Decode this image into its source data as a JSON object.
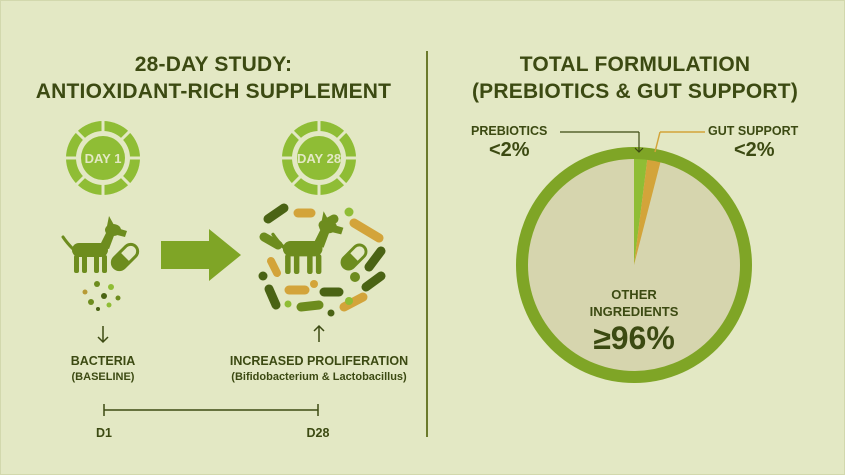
{
  "left_panel": {
    "title_line1": "28-DAY STUDY:",
    "title_line2": "ANTIOXIDANT-RICH SUPPLEMENT",
    "day1_badge": "DAY 1",
    "day28_badge": "DAY 28",
    "baseline_label": "BACTERIA",
    "baseline_sub": "(BASELINE)",
    "increase_label": "INCREASED PROLIFERATION",
    "increase_sub": "(Bifidobacterium & Lactobacillus)",
    "timeline_start": "D1",
    "timeline_end": "D28"
  },
  "right_panel": {
    "title_line1": "TOTAL FORMULATION",
    "title_line2": "(PREBIOTICS & GUT SUPPORT)",
    "prebiotics_label": "PREBIOTICS",
    "prebiotics_value": "<2%",
    "gut_support_label": "GUT SUPPORT",
    "gut_support_value": "<2%",
    "other_label_line1": "OTHER",
    "other_label_line2": "INGREDIENTS",
    "other_value": "≥96%"
  },
  "colors": {
    "background": "#e3e8c4",
    "dark_green": "#3c4a12",
    "primary_green": "#7fa526",
    "light_green": "#8fbd35",
    "gold": "#d3a43a",
    "pie_fill": "#d6d5ae"
  },
  "icons": [
    "dog-icon",
    "capsule-icon",
    "arrow-right-icon",
    "arrow-down-icon",
    "arrow-up-icon",
    "bacteria-icon"
  ]
}
